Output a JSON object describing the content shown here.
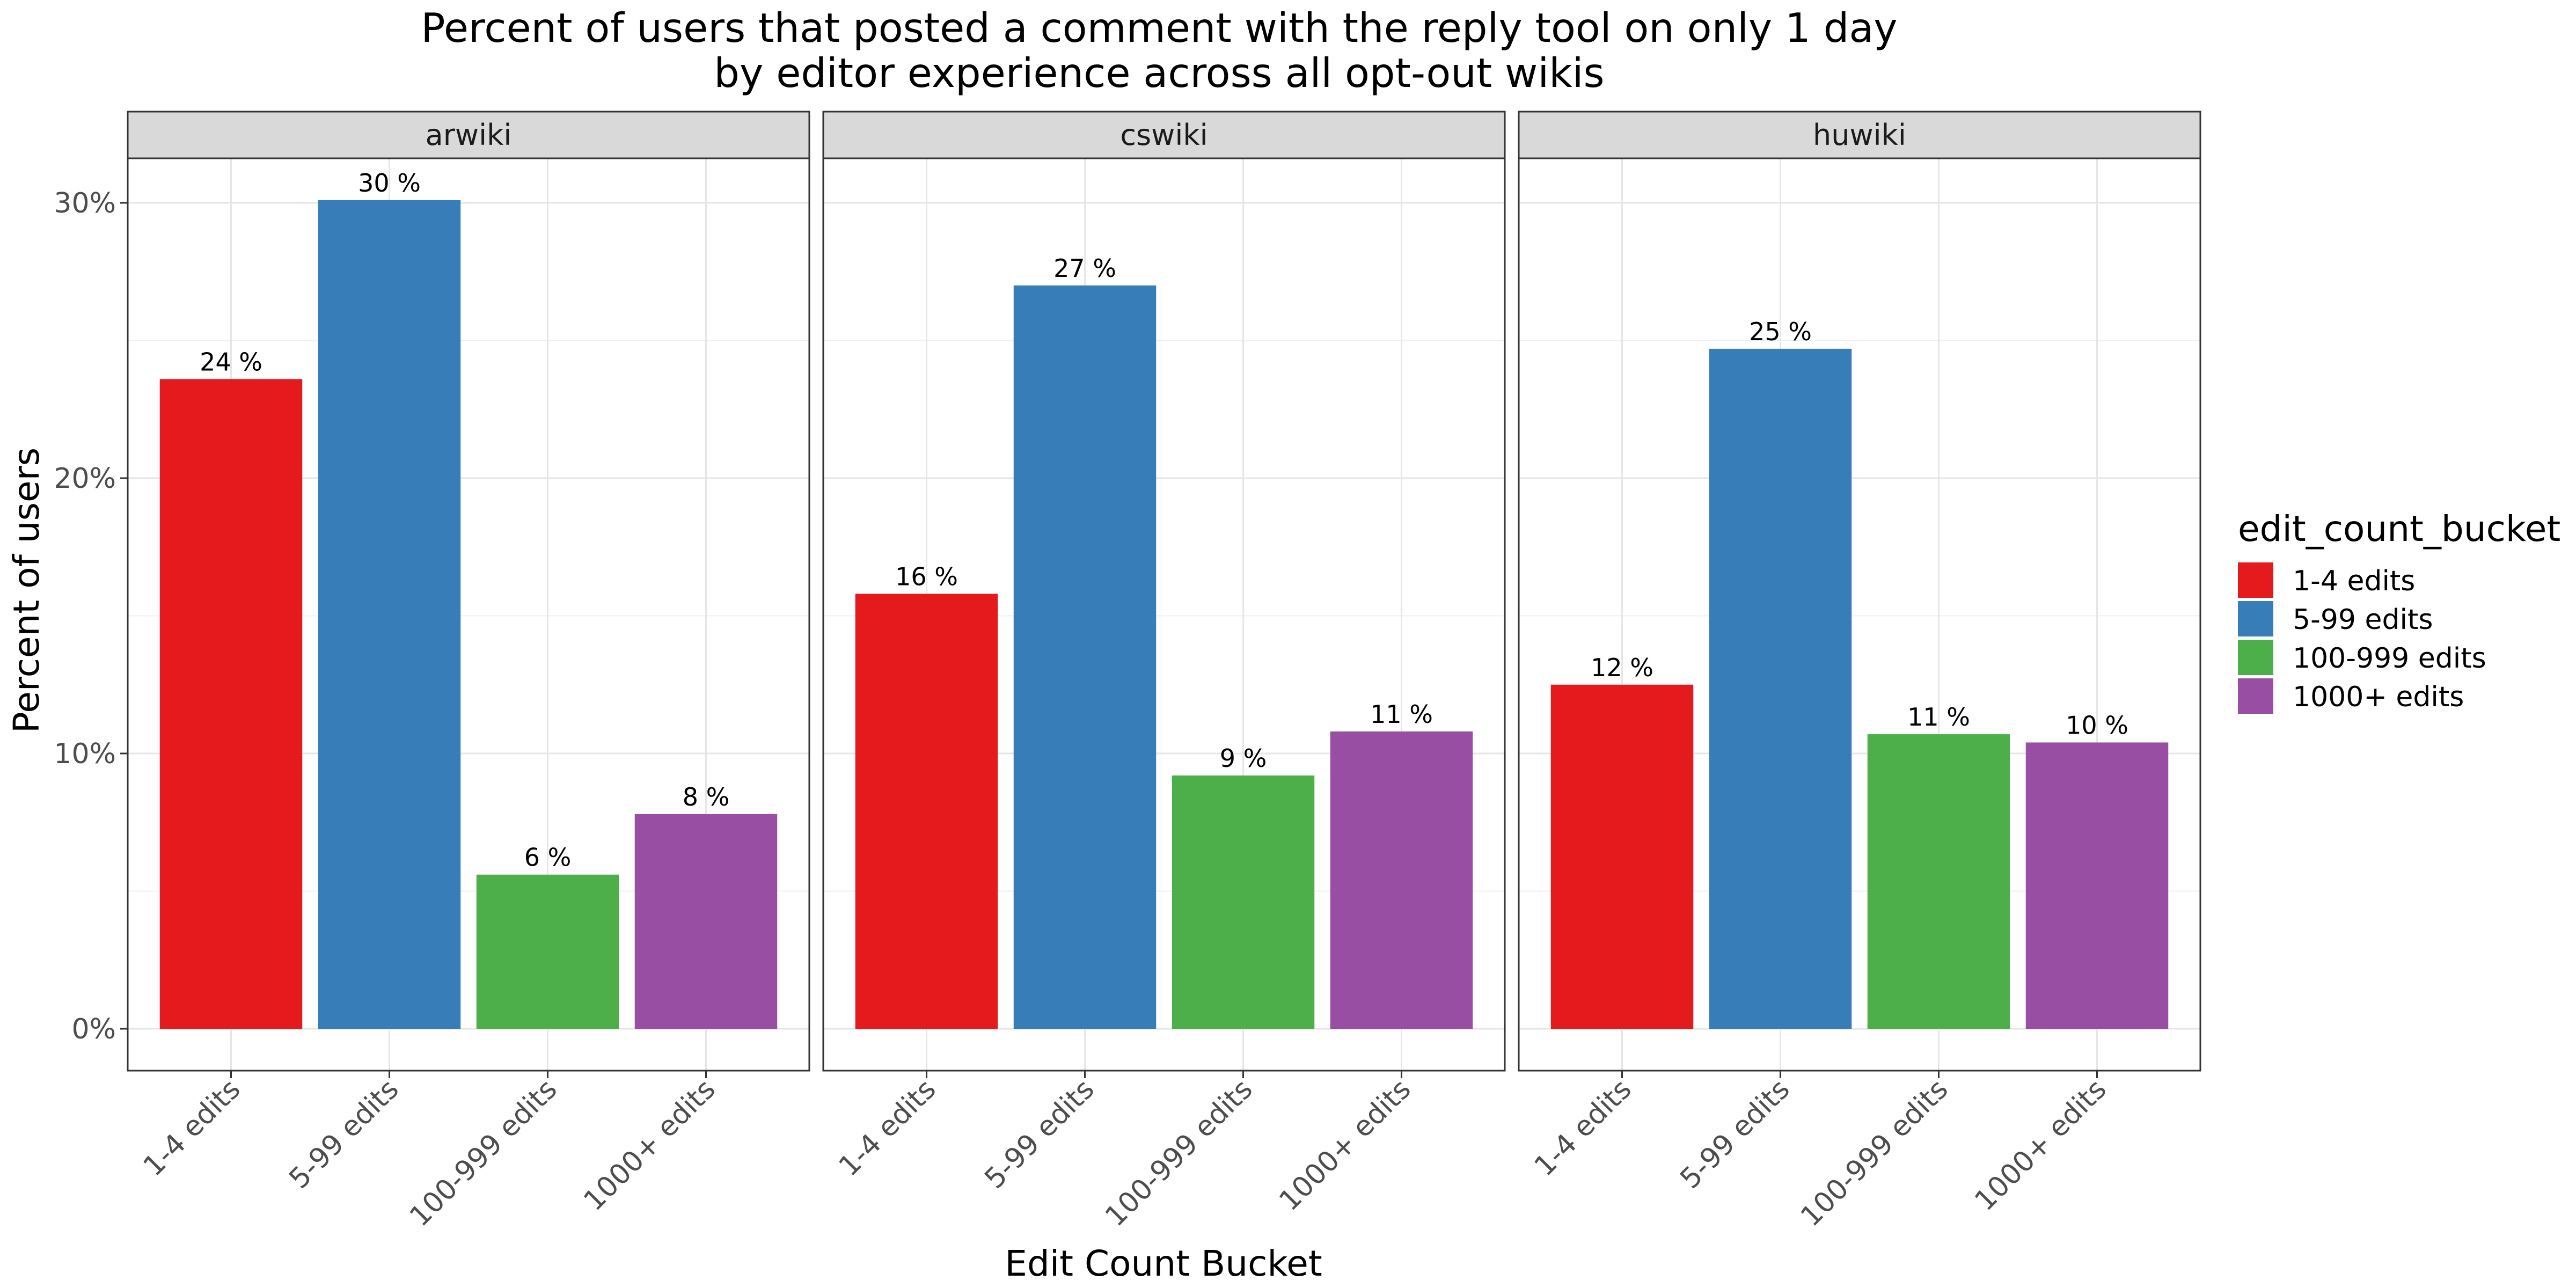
{
  "chart_data": {
    "type": "bar",
    "title_line1": "Percent of users that posted a comment with the reply tool on only 1 day",
    "title_line2": "by editor experience across all opt-out wikis",
    "xlabel": "Edit Count Bucket",
    "ylabel": "Percent of users",
    "ylim": [
      0,
      0.315
    ],
    "y_ticks": [
      0,
      0.1,
      0.2,
      0.3
    ],
    "y_tick_labels": [
      "0%",
      "10%",
      "20%",
      "30%"
    ],
    "grid": true,
    "legend_position": "right",
    "legend_title": "edit_count_bucket",
    "categories": [
      "1-4 edits",
      "5-99 edits",
      "100-999 edits",
      "1000+ edits"
    ],
    "colors": [
      "#E41A1C",
      "#377EB8",
      "#4DAF4A",
      "#984EA3"
    ],
    "panels": [
      {
        "name": "arwiki",
        "values": [
          0.236,
          0.301,
          0.056,
          0.078
        ],
        "labels": [
          "24 %",
          "30 %",
          "6 %",
          "8 %"
        ]
      },
      {
        "name": "cswiki",
        "values": [
          0.158,
          0.27,
          0.092,
          0.108
        ],
        "labels": [
          "16 %",
          "27 %",
          "9 %",
          "11 %"
        ]
      },
      {
        "name": "huwiki",
        "values": [
          0.125,
          0.247,
          0.107,
          0.104
        ],
        "labels": [
          "12 %",
          "25 %",
          "11 %",
          "10 %"
        ]
      }
    ]
  }
}
